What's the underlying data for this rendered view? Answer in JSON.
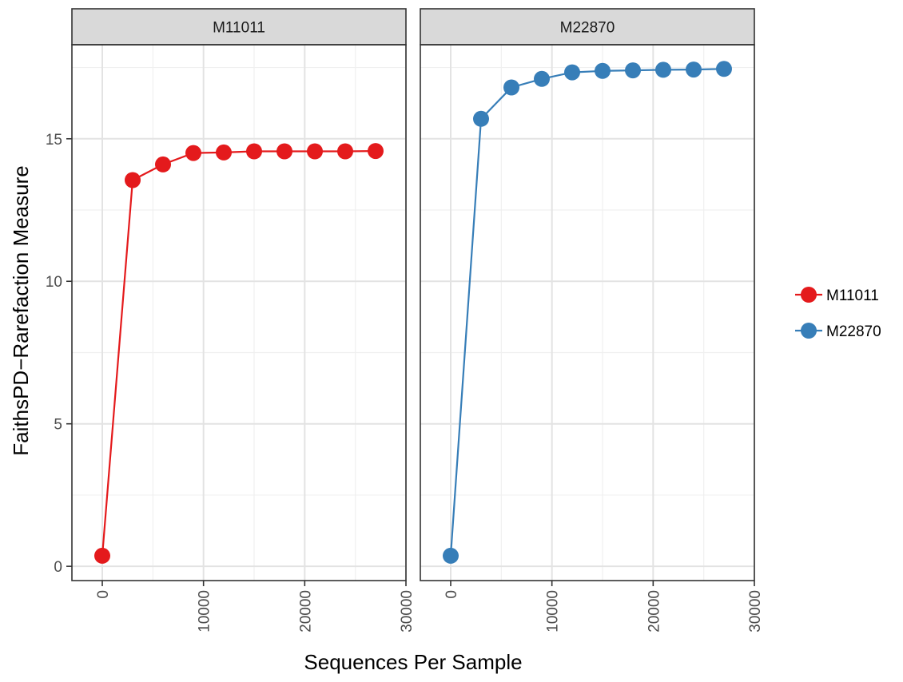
{
  "chart_data": {
    "type": "line",
    "facet_titles": [
      "M11011",
      "M22870"
    ],
    "xlabel": "Sequences Per Sample",
    "ylabel": "FaithsPD−Rarefaction Measure",
    "xlim": [
      -3000,
      30000
    ],
    "ylim": [
      -0.5,
      18.3
    ],
    "x_ticks": [
      0,
      10000,
      20000,
      30000
    ],
    "x_tick_labels": [
      "0",
      "10000",
      "20000",
      "30000"
    ],
    "y_ticks": [
      0,
      5,
      10,
      15
    ],
    "y_tick_labels": [
      "0",
      "5",
      "10",
      "15"
    ],
    "grid": true,
    "legend_position": "right",
    "series": [
      {
        "name": "M11011",
        "facet": 0,
        "color": "#e41a1c",
        "x": [
          0,
          3000,
          6000,
          9000,
          12000,
          15000,
          18000,
          21000,
          24000,
          27000
        ],
        "y": [
          0.37,
          13.55,
          14.1,
          14.5,
          14.52,
          14.56,
          14.56,
          14.56,
          14.56,
          14.57
        ]
      },
      {
        "name": "M22870",
        "facet": 1,
        "color": "#377eb8",
        "x": [
          0,
          3000,
          6000,
          9000,
          12000,
          15000,
          18000,
          21000,
          24000,
          27000
        ],
        "y": [
          0.37,
          15.7,
          16.8,
          17.1,
          17.33,
          17.38,
          17.4,
          17.42,
          17.43,
          17.45
        ]
      }
    ]
  }
}
